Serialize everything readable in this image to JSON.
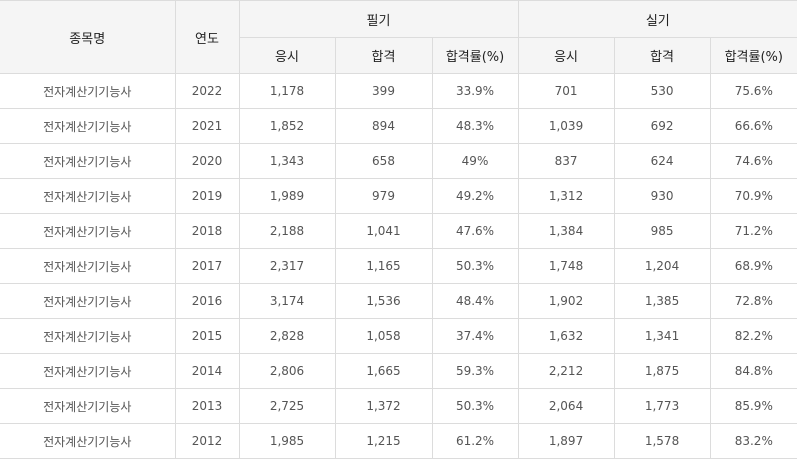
{
  "header": {
    "item": "종목명",
    "year": "연도",
    "written": "필기",
    "practical": "실기",
    "sub": {
      "applied": "응시",
      "passed": "합격",
      "rate": "합격률(%)"
    }
  },
  "rows": [
    {
      "name": "전자계산기기능사",
      "year": "2022",
      "w_applied": "1,178",
      "w_passed": "399",
      "w_rate": "33.9%",
      "p_applied": "701",
      "p_passed": "530",
      "p_rate": "75.6%"
    },
    {
      "name": "전자계산기기능사",
      "year": "2021",
      "w_applied": "1,852",
      "w_passed": "894",
      "w_rate": "48.3%",
      "p_applied": "1,039",
      "p_passed": "692",
      "p_rate": "66.6%"
    },
    {
      "name": "전자계산기기능사",
      "year": "2020",
      "w_applied": "1,343",
      "w_passed": "658",
      "w_rate": "49%",
      "p_applied": "837",
      "p_passed": "624",
      "p_rate": "74.6%"
    },
    {
      "name": "전자계산기기능사",
      "year": "2019",
      "w_applied": "1,989",
      "w_passed": "979",
      "w_rate": "49.2%",
      "p_applied": "1,312",
      "p_passed": "930",
      "p_rate": "70.9%"
    },
    {
      "name": "전자계산기기능사",
      "year": "2018",
      "w_applied": "2,188",
      "w_passed": "1,041",
      "w_rate": "47.6%",
      "p_applied": "1,384",
      "p_passed": "985",
      "p_rate": "71.2%"
    },
    {
      "name": "전자계산기기능사",
      "year": "2017",
      "w_applied": "2,317",
      "w_passed": "1,165",
      "w_rate": "50.3%",
      "p_applied": "1,748",
      "p_passed": "1,204",
      "p_rate": "68.9%"
    },
    {
      "name": "전자계산기기능사",
      "year": "2016",
      "w_applied": "3,174",
      "w_passed": "1,536",
      "w_rate": "48.4%",
      "p_applied": "1,902",
      "p_passed": "1,385",
      "p_rate": "72.8%"
    },
    {
      "name": "전자계산기기능사",
      "year": "2015",
      "w_applied": "2,828",
      "w_passed": "1,058",
      "w_rate": "37.4%",
      "p_applied": "1,632",
      "p_passed": "1,341",
      "p_rate": "82.2%"
    },
    {
      "name": "전자계산기기능사",
      "year": "2014",
      "w_applied": "2,806",
      "w_passed": "1,665",
      "w_rate": "59.3%",
      "p_applied": "2,212",
      "p_passed": "1,875",
      "p_rate": "84.8%"
    },
    {
      "name": "전자계산기기능사",
      "year": "2013",
      "w_applied": "2,725",
      "w_passed": "1,372",
      "w_rate": "50.3%",
      "p_applied": "2,064",
      "p_passed": "1,773",
      "p_rate": "85.9%"
    },
    {
      "name": "전자계산기기능사",
      "year": "2012",
      "w_applied": "1,985",
      "w_passed": "1,215",
      "w_rate": "61.2%",
      "p_applied": "1,897",
      "p_passed": "1,578",
      "p_rate": "83.2%"
    }
  ]
}
